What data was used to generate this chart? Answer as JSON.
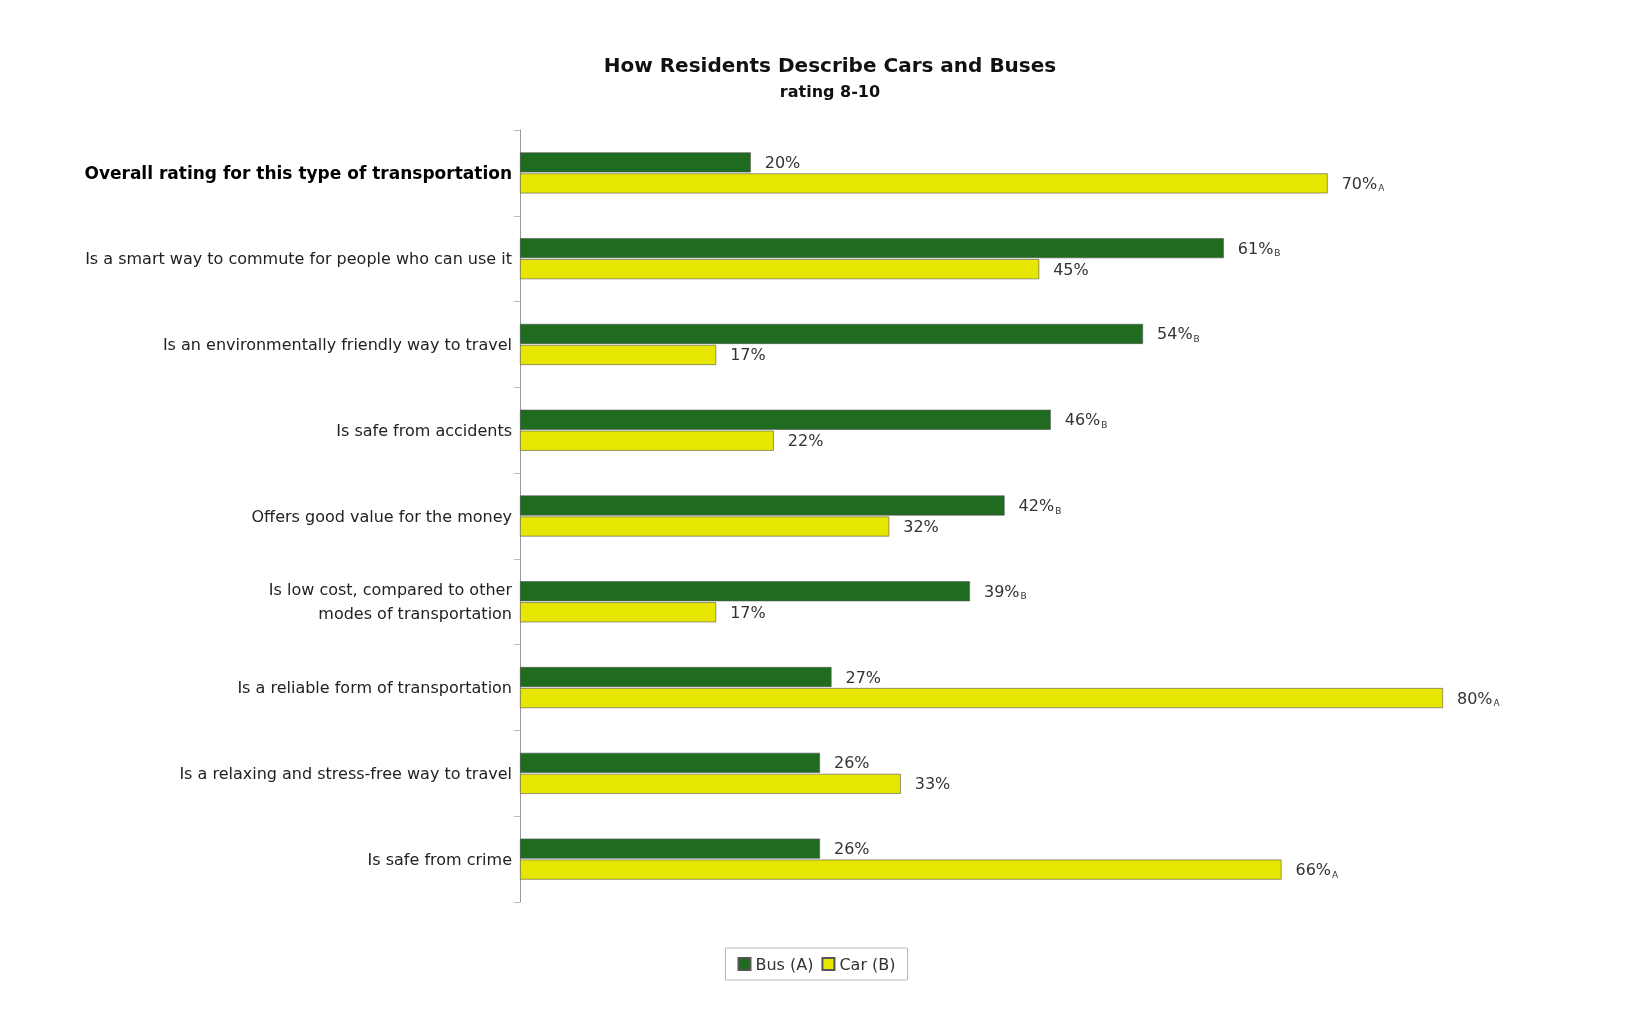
{
  "chart_data": {
    "type": "bar",
    "orientation": "horizontal",
    "title": "How Residents Describe Cars and Buses",
    "subtitle": "rating 8-10",
    "categories": [
      "Overall rating for this type of transportation",
      "Is a smart way to commute for people who can use it",
      "Is an environmentally friendly way to travel",
      "Is safe from accidents",
      "Offers good value for the money",
      "Is low cost, compared to other\nmodes of transportation",
      "Is a reliable form of transportation",
      "Is a relaxing and stress-free way to travel",
      "Is safe from crime"
    ],
    "series": [
      {
        "name": "Bus (A)",
        "color": "#1f6b1f",
        "values": [
          20,
          61,
          54,
          46,
          42,
          39,
          27,
          26,
          26
        ],
        "value_labels": [
          "20%",
          "61%$_{B}$",
          "54%$_{B}$",
          "46%$_{B}$",
          "42%$_{B}$",
          "39%$_{B}$",
          "27%",
          "26%",
          "26%"
        ]
      },
      {
        "name": "Car (B)",
        "color": "#e6e600",
        "values": [
          70,
          45,
          17,
          22,
          32,
          17,
          80,
          33,
          66
        ],
        "value_labels": [
          "70%$_{A}$",
          "45%",
          "17%",
          "22%",
          "32%",
          "17%",
          "80%$_{A}$",
          "33%",
          "66%$_{A}$"
        ]
      }
    ],
    "legend": "bottom",
    "grid": false
  }
}
